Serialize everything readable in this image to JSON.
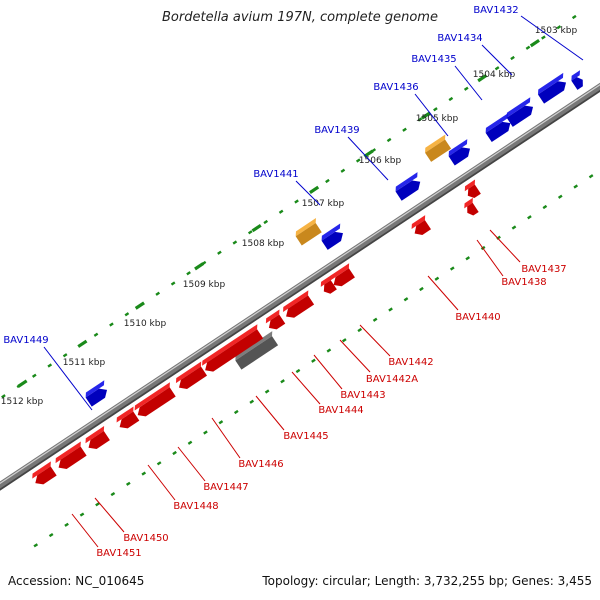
{
  "title": "Bordetella avium 197N, complete genome",
  "accession": "Accession: NC_010645",
  "summary": "Topology: circular; Length: 3,732,255 bp; Genes: 3,455",
  "colors": {
    "background": "#ffffff",
    "backbone": "#777777",
    "tick": "#1a8a1a",
    "forward_gene": "#0000e6",
    "reverse_gene": "#ee0000",
    "rna_gene": "#f5a623",
    "pseudo_gene": "#666666",
    "forward_label": "#0000cc",
    "reverse_label": "#cc0000"
  },
  "scale_labels": [
    "1503 kbp",
    "1504 kbp",
    "1505 kbp",
    "1506 kbp",
    "1507 kbp",
    "1508 kbp",
    "1509 kbp",
    "1510 kbp",
    "1511 kbp",
    "1512 kbp"
  ],
  "forward_genes": [
    "BAV1432",
    "BAV1434",
    "BAV1435",
    "BAV1436",
    "BAV1439",
    "BAV1441",
    "BAV1449"
  ],
  "reverse_genes": [
    "BAV1437",
    "BAV1438",
    "BAV1440",
    "BAV1442",
    "BAV1442A",
    "BAV1443",
    "BAV1444",
    "BAV1445",
    "BAV1446",
    "BAV1447",
    "BAV1448",
    "BAV1450",
    "BAV1451"
  ]
}
